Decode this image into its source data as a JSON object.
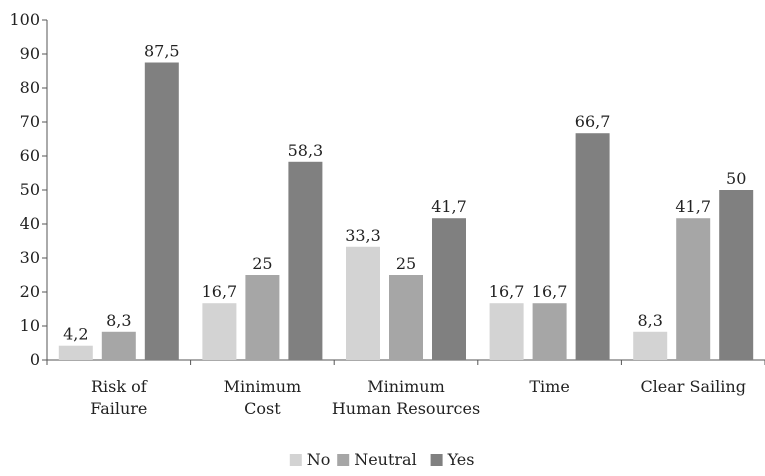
{
  "chart_data": {
    "type": "bar",
    "title": "",
    "xlabel": "",
    "ylabel": "",
    "categories": [
      [
        "Risk of",
        "Failure"
      ],
      [
        "Minimum",
        "Cost"
      ],
      [
        "Minimum",
        "Human Resources"
      ],
      [
        "Time"
      ],
      [
        "Clear Sailing"
      ]
    ],
    "series": [
      {
        "name": "No",
        "color": "#d3d3d3",
        "values": [
          4.2,
          16.7,
          33.3,
          16.7,
          8.3
        ],
        "labels": [
          "4,2",
          "16,7",
          "33,3",
          "16,7",
          "8,3"
        ]
      },
      {
        "name": "Neutral",
        "color": "#a6a6a6",
        "values": [
          8.3,
          25,
          25,
          16.7,
          41.7
        ],
        "labels": [
          "8,3",
          "25",
          "25",
          "16,7",
          "41,7"
        ]
      },
      {
        "name": "Yes",
        "color": "#808080",
        "values": [
          87.5,
          58.3,
          41.7,
          66.7,
          50
        ],
        "labels": [
          "87,5",
          "58,3",
          "41,7",
          "66,7",
          "50"
        ]
      }
    ],
    "ylim": [
      0,
      100
    ],
    "yticks": [
      0,
      10,
      20,
      30,
      40,
      50,
      60,
      70,
      80,
      90,
      100
    ],
    "grid": false,
    "legend_position": "bottom"
  },
  "colors": {
    "axis": "#555555",
    "text": "#222222"
  }
}
